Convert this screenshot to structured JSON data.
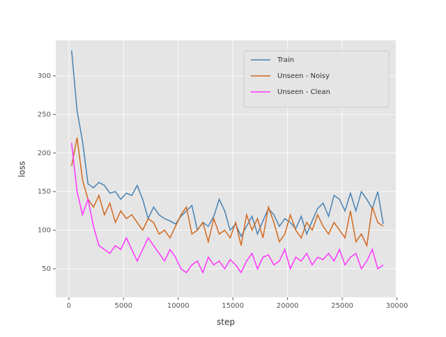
{
  "chart_data": {
    "type": "line",
    "xlabel": "step",
    "ylabel": "loss",
    "x": [
      250,
      750,
      1250,
      1750,
      2250,
      2750,
      3250,
      3750,
      4250,
      4750,
      5250,
      5750,
      6250,
      6750,
      7250,
      7750,
      8250,
      8750,
      9250,
      9750,
      10250,
      10750,
      11250,
      11750,
      12250,
      12750,
      13250,
      13750,
      14250,
      14750,
      15250,
      15750,
      16250,
      16750,
      17250,
      17750,
      18250,
      18750,
      19250,
      19750,
      20250,
      20750,
      21250,
      21750,
      22250,
      22750,
      23250,
      23750,
      24250,
      24750,
      25250,
      25750,
      26250,
      26750,
      27250,
      27750,
      28250,
      28750
    ],
    "series": [
      {
        "name": "Train",
        "color": "#4682b4",
        "values": [
          333,
          255,
          215,
          160,
          155,
          162,
          158,
          148,
          150,
          140,
          148,
          145,
          158,
          140,
          115,
          130,
          120,
          115,
          112,
          108,
          118,
          125,
          132,
          100,
          110,
          105,
          118,
          140,
          125,
          100,
          108,
          92,
          105,
          118,
          95,
          112,
          128,
          120,
          105,
          115,
          110,
          102,
          118,
          95,
          112,
          128,
          135,
          118,
          145,
          140,
          125,
          148,
          125,
          150,
          140,
          128,
          150,
          108
        ]
      },
      {
        "name": "Unseen - Noisy",
        "color": "#d2691e",
        "values": [
          183,
          220,
          165,
          140,
          130,
          145,
          120,
          135,
          110,
          125,
          115,
          120,
          110,
          100,
          115,
          110,
          95,
          100,
          90,
          105,
          120,
          130,
          95,
          100,
          110,
          85,
          115,
          95,
          100,
          90,
          110,
          80,
          120,
          100,
          115,
          90,
          130,
          110,
          85,
          95,
          120,
          100,
          90,
          110,
          100,
          120,
          105,
          95,
          110,
          100,
          90,
          125,
          85,
          95,
          80,
          130,
          110,
          105
        ]
      },
      {
        "name": "Unseen - Clean",
        "color": "#ff33ff",
        "values": [
          213,
          150,
          120,
          140,
          105,
          80,
          75,
          70,
          80,
          75,
          90,
          75,
          60,
          75,
          90,
          80,
          70,
          60,
          75,
          65,
          50,
          45,
          55,
          60,
          45,
          65,
          55,
          60,
          50,
          62,
          55,
          45,
          60,
          70,
          50,
          65,
          68,
          55,
          60,
          75,
          50,
          65,
          60,
          70,
          55,
          65,
          62,
          70,
          60,
          75,
          55,
          65,
          70,
          50,
          60,
          75,
          50,
          55
        ]
      }
    ],
    "xlim": [
      -1200,
      29900
    ],
    "ylim": [
      13,
      346
    ],
    "xticks": [
      0,
      5000,
      10000,
      15000,
      20000,
      25000,
      30000
    ],
    "yticks": [
      50,
      100,
      150,
      200,
      250,
      300
    ],
    "grid": true,
    "legend": "upper right"
  }
}
